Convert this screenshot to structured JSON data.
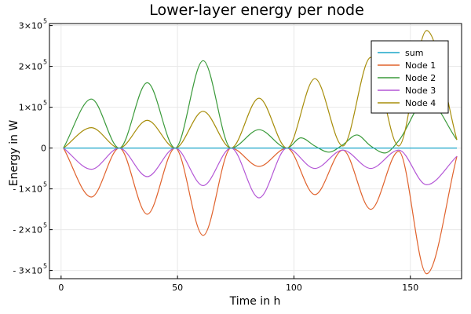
{
  "chart_data": {
    "type": "line",
    "title": "Lower-layer energy per node",
    "xlabel": "Time in h",
    "ylabel": "Energy in W",
    "xlim": [
      -5,
      172
    ],
    "ylim": [
      -320000,
      305000
    ],
    "x_ticks": [
      0,
      50,
      100,
      150
    ],
    "x_tick_labels": [
      "0",
      "50",
      "100",
      "150"
    ],
    "y_ticks": [
      -300000,
      -200000,
      -100000,
      0,
      100000,
      200000,
      300000
    ],
    "y_tick_labels": [
      {
        "mantissa": "- 3×10",
        "exp": "5"
      },
      {
        "mantissa": "- 2×10",
        "exp": "5"
      },
      {
        "mantissa": "- 1×10",
        "exp": "5"
      },
      {
        "mantissa": "0",
        "exp": ""
      },
      {
        "mantissa": "1×10",
        "exp": "5"
      },
      {
        "mantissa": "2×10",
        "exp": "5"
      },
      {
        "mantissa": "3×10",
        "exp": "5"
      }
    ],
    "grid": true,
    "legend_position": "top-right",
    "series": [
      {
        "name": "sum",
        "color": "#1aa6c9",
        "points": [
          [
            1,
            0
          ],
          [
            25,
            0
          ],
          [
            49,
            0
          ],
          [
            73,
            0
          ],
          [
            97,
            0
          ],
          [
            121,
            0
          ],
          [
            145,
            0
          ],
          [
            170,
            0
          ]
        ]
      },
      {
        "name": "Node 1",
        "color": "#e0622c",
        "points": [
          [
            1,
            0
          ],
          [
            13,
            -120000
          ],
          [
            25,
            0
          ],
          [
            37,
            -162000
          ],
          [
            49,
            0
          ],
          [
            61,
            -214000
          ],
          [
            73,
            0
          ],
          [
            85,
            -45000
          ],
          [
            97,
            0
          ],
          [
            109,
            -114000
          ],
          [
            121,
            -5000
          ],
          [
            133,
            -150000
          ],
          [
            145,
            -8000
          ],
          [
            157,
            -308000
          ],
          [
            170,
            -20000
          ]
        ]
      },
      {
        "name": "Node 2",
        "color": "#3a9a3a",
        "points": [
          [
            1,
            0
          ],
          [
            13,
            120000
          ],
          [
            25,
            0
          ],
          [
            37,
            160000
          ],
          [
            49,
            0
          ],
          [
            61,
            214000
          ],
          [
            73,
            0
          ],
          [
            85,
            45000
          ],
          [
            97,
            0
          ],
          [
            103,
            25000
          ],
          [
            109,
            5000
          ],
          [
            115,
            -10000
          ],
          [
            121,
            8000
          ],
          [
            127,
            32000
          ],
          [
            133,
            5000
          ],
          [
            139,
            -12000
          ],
          [
            145,
            18000
          ],
          [
            157,
            120000
          ],
          [
            170,
            20000
          ]
        ]
      },
      {
        "name": "Node 3",
        "color": "#b457d6",
        "points": [
          [
            1,
            0
          ],
          [
            13,
            -52000
          ],
          [
            25,
            0
          ],
          [
            37,
            -70000
          ],
          [
            49,
            0
          ],
          [
            61,
            -92000
          ],
          [
            73,
            0
          ],
          [
            85,
            -122000
          ],
          [
            97,
            0
          ],
          [
            109,
            -50000
          ],
          [
            121,
            -5000
          ],
          [
            133,
            -50000
          ],
          [
            145,
            -5000
          ],
          [
            157,
            -90000
          ],
          [
            170,
            -20000
          ]
        ]
      },
      {
        "name": "Node 4",
        "color": "#a78d0a",
        "points": [
          [
            1,
            0
          ],
          [
            13,
            50000
          ],
          [
            25,
            0
          ],
          [
            37,
            68000
          ],
          [
            49,
            0
          ],
          [
            61,
            90000
          ],
          [
            73,
            0
          ],
          [
            85,
            122000
          ],
          [
            97,
            0
          ],
          [
            109,
            170000
          ],
          [
            121,
            5000
          ],
          [
            133,
            222000
          ],
          [
            145,
            5000
          ],
          [
            157,
            288000
          ],
          [
            170,
            20000
          ]
        ]
      }
    ]
  }
}
